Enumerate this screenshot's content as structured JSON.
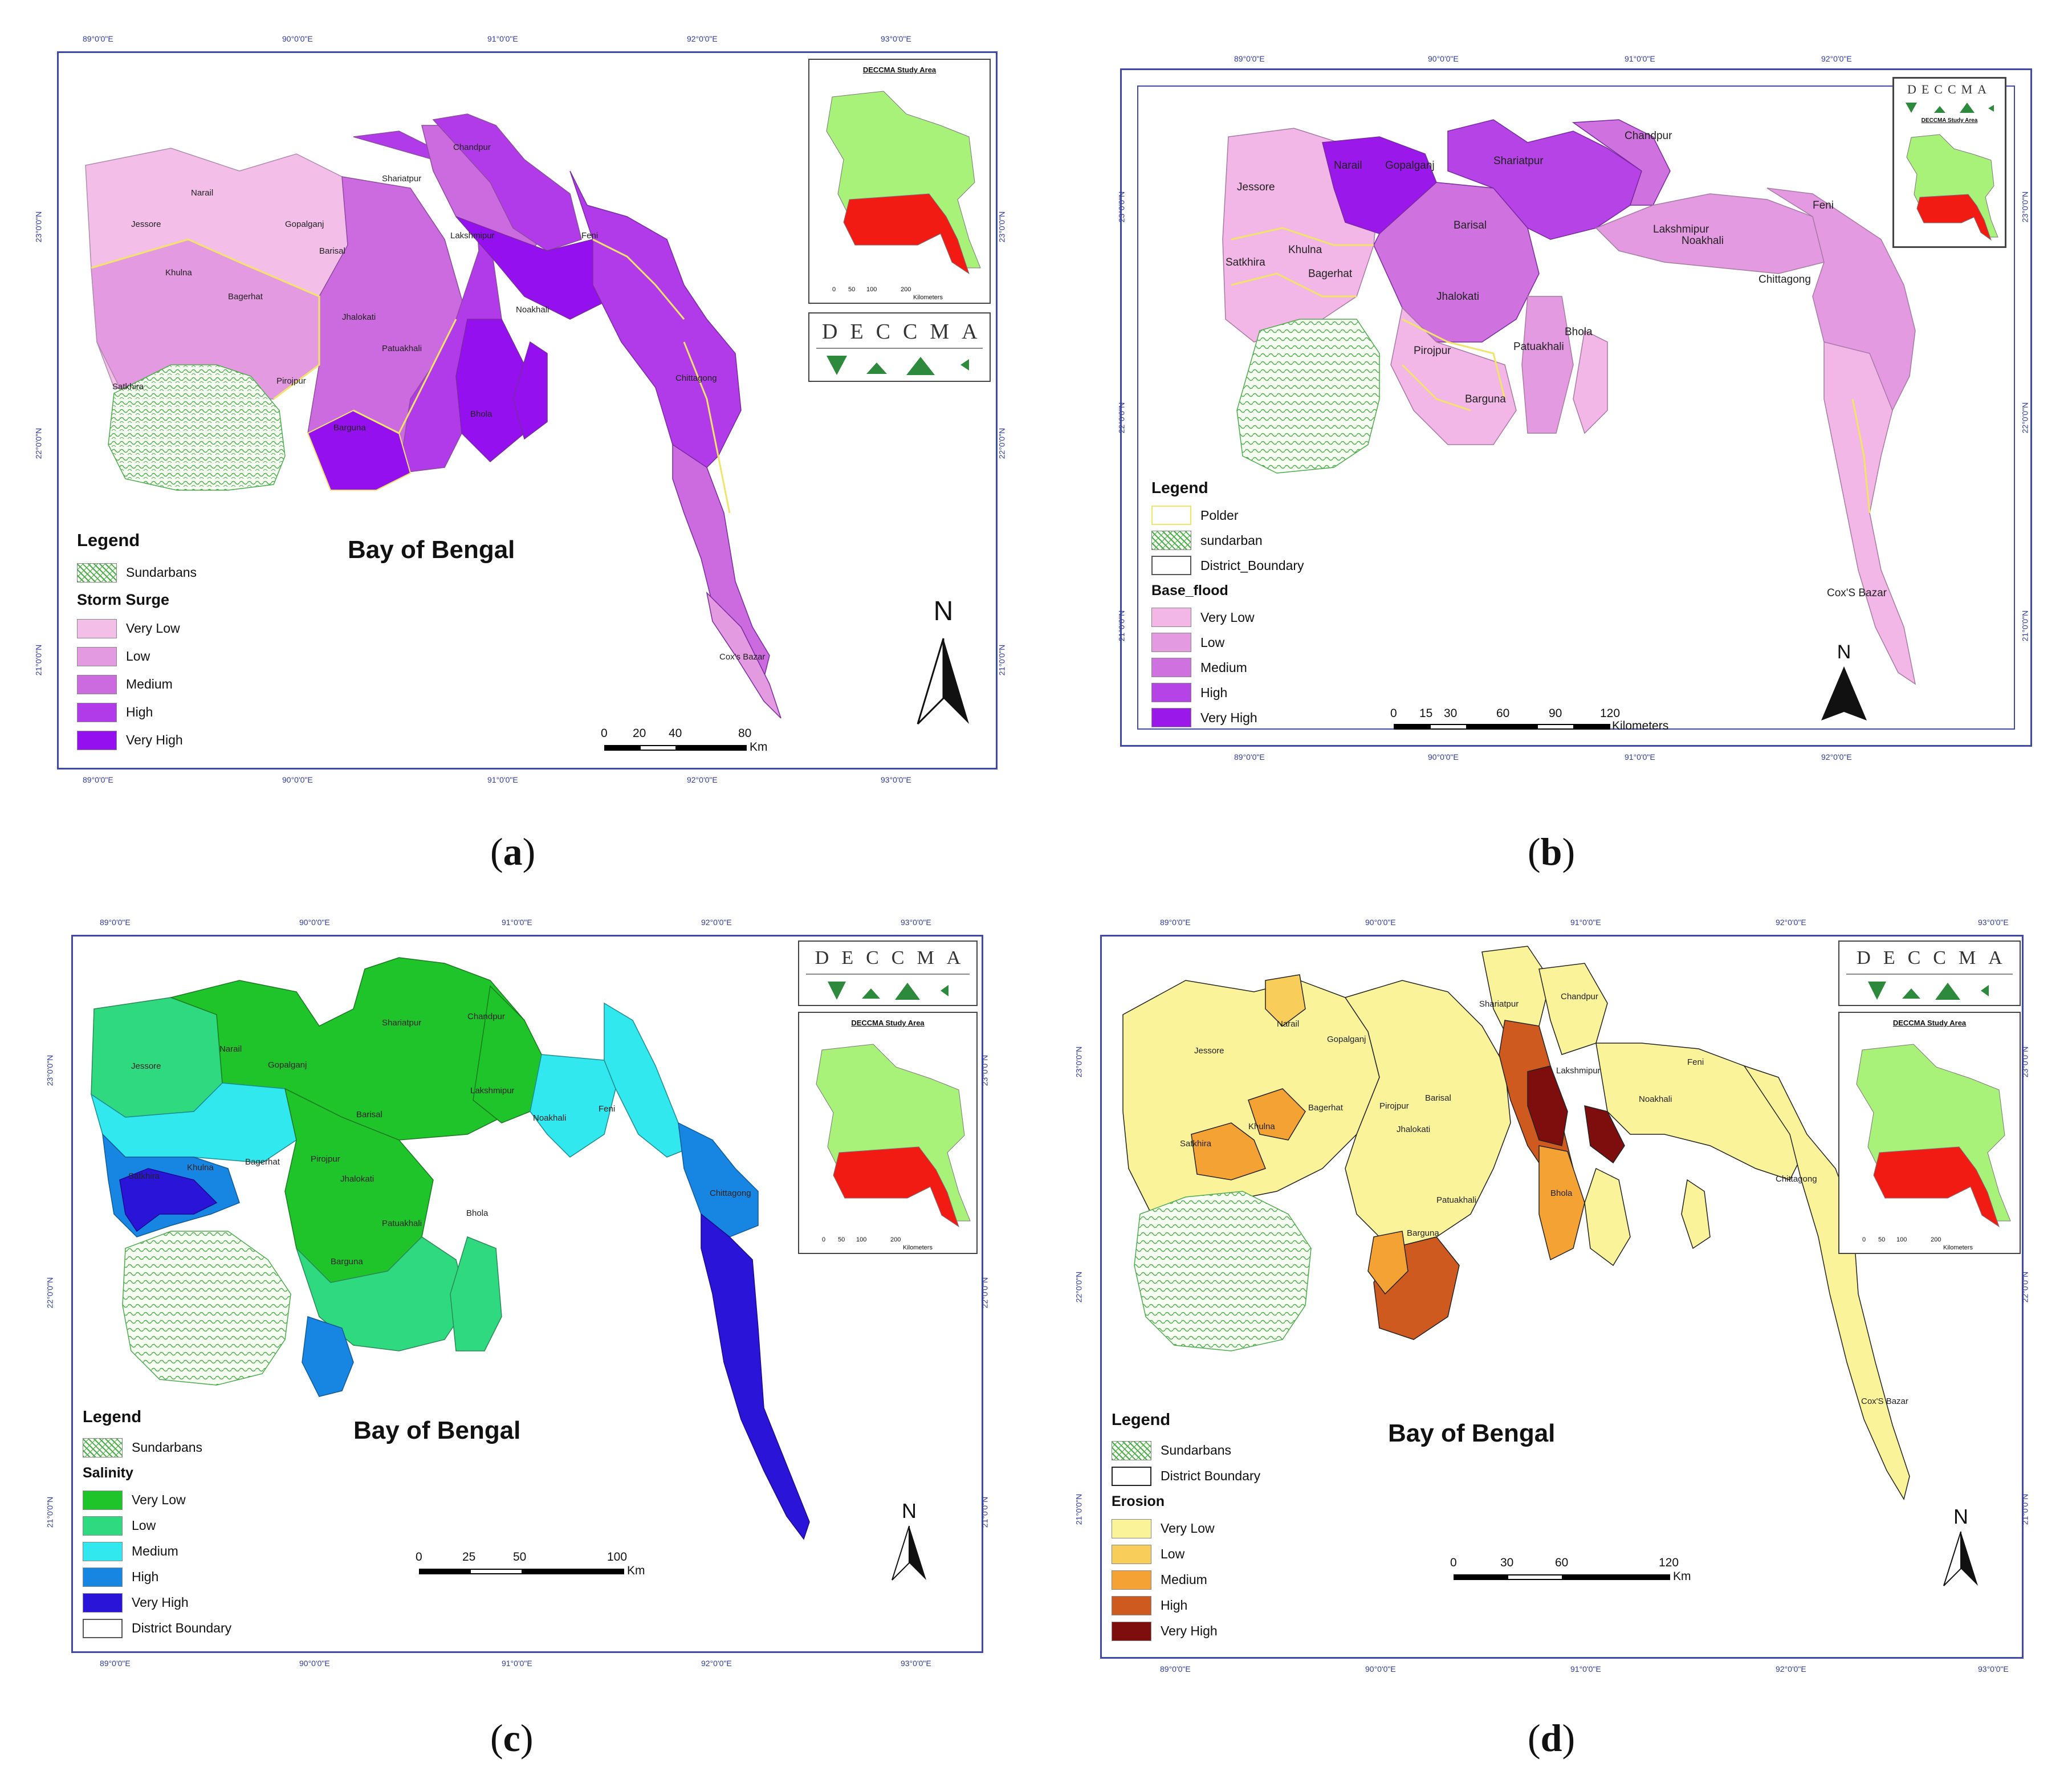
{
  "panels": {
    "a": {
      "caption": "a",
      "bay_label": "Bay of Bengal",
      "lon_labels": [
        "89°0'0\"E",
        "90°0'0\"E",
        "91°0'0\"E",
        "92°0'0\"E",
        "93°0'0\"E"
      ],
      "lat_labels": [
        "23°0'0\"N",
        "22°0'0\"N",
        "21°0'0\"N"
      ],
      "places": [
        "Chandpur",
        "Narail",
        "Shariatpur",
        "Gopalganj",
        "Jessore",
        "Lakshmipur",
        "Feni",
        "Barisal",
        "Khulna",
        "Bagerhat",
        "Noakhali",
        "Jhalokati",
        "Patuakhali",
        "Chittagong",
        "Satkhira",
        "Pirojpur",
        "Barguna",
        "Bhola",
        "Cox's Bazar"
      ],
      "legend": {
        "title": "Legend",
        "sundarbans": "Sundarbans",
        "subtitle": "Storm Surge",
        "classes": [
          "Very Low",
          "Low",
          "Medium",
          "High",
          "Very High"
        ]
      },
      "scale": {
        "ticks": [
          "0",
          "20",
          "40",
          "80"
        ],
        "unit": "Km"
      },
      "north": "N",
      "inset_title": "DECCMA Study Area",
      "inset_unit": "Kilometers",
      "inset_ticks": [
        "0",
        "50",
        "100",
        "200"
      ],
      "logo": "DECCMA"
    },
    "b": {
      "caption": "b",
      "lon_labels": [
        "89°0'0\"E",
        "90°0'0\"E",
        "91°0'0\"E",
        "92°0'0\"E"
      ],
      "lat_labels": [
        "23°0'0\"N",
        "22°0'0\"N",
        "21°0'0\"N"
      ],
      "places": [
        "Chandpur",
        "Narail",
        "Gopalganj",
        "Shariatpur",
        "Jessore",
        "Feni",
        "Barisal",
        "Lakshmipur",
        "Khulna",
        "Noakhali",
        "Satkhira",
        "Bagerhat",
        "Chittagong",
        "Jhalokati",
        "Bhola",
        "Pirojpur",
        "Patuakhali",
        "Barguna",
        "Cox'S Bazar"
      ],
      "legend": {
        "title": "Legend",
        "polder": "Polder",
        "sundarban": "sundarban",
        "district": "District_Boundary",
        "subtitle": "Base_flood",
        "classes": [
          "Very Low",
          "Low",
          "Medium",
          "High",
          "Very High"
        ]
      },
      "scale": {
        "ticks": [
          "0",
          "15",
          "30",
          "60",
          "90",
          "120"
        ],
        "unit": "Kilometers"
      },
      "north": "N",
      "inset_title": "DECCMA Study Area",
      "logo": "DECCMA"
    },
    "c": {
      "caption": "c",
      "bay_label": "Bay of Bengal",
      "lon_labels": [
        "89°0'0\"E",
        "90°0'0\"E",
        "91°0'0\"E",
        "92°0'0\"E",
        "93°0'0\"E"
      ],
      "lat_labels": [
        "23°0'0\"N",
        "22°0'0\"N",
        "21°0'0\"N"
      ],
      "places": [
        "Shariatpur",
        "Chandpur",
        "Narail",
        "Jessore",
        "Gopalganj",
        "Lakshmipur",
        "Feni",
        "Barisal",
        "Noakhali",
        "Bagerhat",
        "Pirojpur",
        "Satkhira",
        "Khulna",
        "Jhalokati",
        "Chittagong",
        "Patuakhali",
        "Bhola",
        "Barguna"
      ],
      "legend": {
        "title": "Legend",
        "sundarbans": "Sundarbans",
        "subtitle": "Salinity",
        "classes": [
          "Very Low",
          "Low",
          "Medium",
          "High",
          "Very High"
        ],
        "district": "District Boundary"
      },
      "scale": {
        "ticks": [
          "0",
          "25",
          "50",
          "100"
        ],
        "unit": "Km"
      },
      "north": "N",
      "inset_title": "DECCMA Study Area",
      "inset_unit": "Kilometers",
      "inset_ticks": [
        "0",
        "50",
        "100",
        "200"
      ],
      "logo": "DECCMA"
    },
    "d": {
      "caption": "d",
      "bay_label": "Bay of Bengal",
      "lon_labels": [
        "89°0'0\"E",
        "90°0'0\"E",
        "91°0'0\"E",
        "92°0'0\"E",
        "93°0'0\"E"
      ],
      "lat_labels": [
        "23°0'0\"N",
        "22°0'0\"N",
        "21°0'0\"N"
      ],
      "places": [
        "Shariatpur",
        "Chandpur",
        "Narail",
        "Gopalganj",
        "Jessore",
        "Lakshmipur",
        "Feni",
        "Barisal",
        "Noakhali",
        "Bagerhat",
        "Pirojpur",
        "Khulna",
        "Jhalokati",
        "Satkhira",
        "Chittagong",
        "Bhola",
        "Patuakhali",
        "Barguna",
        "Cox'S Bazar"
      ],
      "legend": {
        "title": "Legend",
        "sundarbans": "Sundarbans",
        "district": "District Boundary",
        "subtitle": "Erosion",
        "classes": [
          "Very Low",
          "Low",
          "Medium",
          "High",
          "Very High"
        ]
      },
      "scale": {
        "ticks": [
          "0",
          "30",
          "60",
          "120"
        ],
        "unit": "Km"
      },
      "north": "N",
      "inset_title": "DECCMA Study Area",
      "inset_unit": "Kilometers",
      "inset_ticks": [
        "0",
        "50",
        "100",
        "200"
      ],
      "logo": "DECCMA"
    }
  },
  "colors": {
    "storm_surge": [
      "#f3bfe9",
      "#e39ae0",
      "#cc6be0",
      "#b13be8",
      "#9510ef"
    ],
    "base_flood": [
      "#f2b7e6",
      "#e49ae0",
      "#cf72e0",
      "#b543e6",
      "#9a18ea"
    ],
    "salinity": [
      "#1fc42a",
      "#2fd980",
      "#30e8ee",
      "#1786e2",
      "#2a14d8"
    ],
    "erosion": [
      "#fbf39a",
      "#f8cd5a",
      "#f4a233",
      "#cf5a1f",
      "#7e0d0d"
    ],
    "polder": "#f2e36a",
    "frame": "#3f49a8",
    "bangladesh_green": "#a8f27a",
    "study_area_red": "#f11b14"
  }
}
